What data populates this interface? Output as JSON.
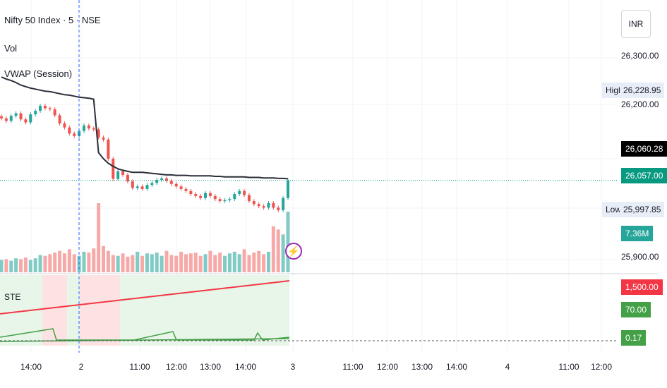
{
  "legend": {
    "symbol": "Nifty 50 Index · 5 · NSE",
    "vol": "Vol",
    "vwap": "VWAP (Session)",
    "ste": "STE"
  },
  "currency": "INR",
  "price_axis": {
    "ticks": [
      "26,300.00",
      "26,200.00",
      "25,900.00"
    ],
    "high_label": "High",
    "high_value": "26,228.95",
    "vwap_value": "26,060.28",
    "last_value": "26,057.00",
    "low_label": "Low",
    "low_value": "25,997.85",
    "volume_value": "7.36M",
    "ste_red": "1,500.00",
    "ste_green": "70.00",
    "ste_small": "0.17"
  },
  "time_axis": [
    "14:00",
    "2",
    "11:00",
    "12:00",
    "13:00",
    "14:00",
    "3",
    "11:00",
    "12:00",
    "13:00",
    "14:00",
    "4",
    "11:00",
    "12:00"
  ],
  "colors": {
    "up": "#26a69a",
    "down": "#ef5350",
    "vwap": "#2a2e39",
    "ste_red": "#f23645",
    "ste_green": "#43a047",
    "current": "#089981"
  },
  "icons": [
    "lightning-icon"
  ],
  "chart_data": {
    "type": "line",
    "price_series": {
      "name": "Nifty 50 Index",
      "close": [
        26180,
        26175,
        26185,
        26190,
        26178,
        26172,
        26188,
        26195,
        26205,
        26200,
        26198,
        26186,
        26170,
        26162,
        26150,
        26145,
        26155,
        26166,
        26160,
        26158,
        26142,
        26138,
        26100,
        26060,
        26075,
        26068,
        26055,
        26042,
        26045,
        26040,
        26048,
        26052,
        26058,
        26061,
        26056,
        26050,
        26045,
        26040,
        26036,
        26030,
        26026,
        26022,
        26032,
        26026,
        26020,
        26016,
        26018,
        26020,
        26030,
        26036,
        26028,
        26016,
        26010,
        26006,
        26003,
        26012,
        26003,
        25998,
        26022,
        26057
      ],
      "min": 25997.85,
      "max": 26228.95,
      "last": 26057.0
    },
    "vwap_series": {
      "name": "VWAP (Session)",
      "values": [
        26262,
        26258,
        26255,
        26251,
        26246,
        26243,
        26240,
        26238,
        26236,
        26234,
        26233,
        26231,
        26229,
        26227,
        26226,
        26224,
        26222,
        26221,
        26220,
        26218,
        26112,
        26100,
        26091,
        26085,
        26080,
        26077,
        26075,
        26073,
        26073,
        26073,
        26072,
        26071,
        26070,
        26069,
        26068,
        26068,
        26067,
        26067,
        26067,
        26066,
        26066,
        26066,
        26066,
        26066,
        26065,
        26065,
        26064,
        26064,
        26064,
        26064,
        26064,
        26063,
        26063,
        26063,
        26062,
        26062,
        26062,
        26061,
        26061,
        26060.28
      ]
    },
    "volume": {
      "name": "Vol",
      "values": [
        1.5,
        1.6,
        1.4,
        1.7,
        1.6,
        1.8,
        1.5,
        1.7,
        2.1,
        2.0,
        2.2,
        2.4,
        2.6,
        2.3,
        2.8,
        2.2,
        2.0,
        2.5,
        2.4,
        2.9,
        8.4,
        3.2,
        2.6,
        2.1,
        2.0,
        2.3,
        1.9,
        2.1,
        2.5,
        2.0,
        2.3,
        2.2,
        2.4,
        2.0,
        2.6,
        2.1,
        2.0,
        2.5,
        2.2,
        2.3,
        2.4,
        2.0,
        2.2,
        2.6,
        2.1,
        2.4,
        2.0,
        2.3,
        2.5,
        2.2,
        2.8,
        2.1,
        2.4,
        2.6,
        2.2,
        2.5,
        5.6,
        5.2,
        4.6,
        7.36
      ],
      "last_label": "7.36M"
    },
    "ste": {
      "red_line": {
        "start": 700,
        "end": 1500
      },
      "green_line_last": 70.0,
      "small_value_last": 0.17
    },
    "x_ticks": [
      "14:00",
      "2",
      "11:00",
      "12:00",
      "13:00",
      "14:00",
      "3",
      "11:00",
      "12:00",
      "13:00",
      "14:00",
      "4",
      "11:00",
      "12:00"
    ],
    "y_ticks": [
      "26,300.00",
      "26,200.00",
      "25,900.00"
    ],
    "high": 26228.95,
    "low": 25997.85,
    "grid": true
  }
}
